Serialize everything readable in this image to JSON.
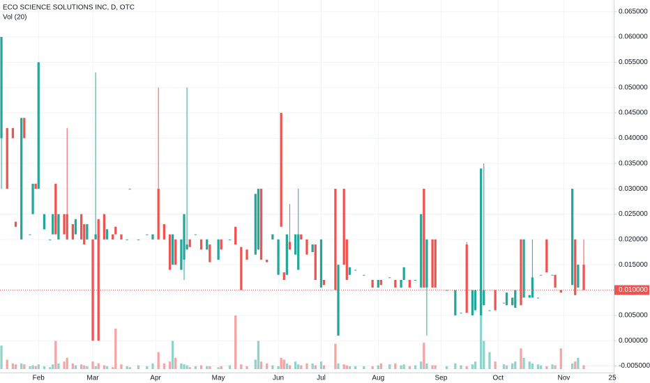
{
  "chart_data": {
    "type": "candlestick",
    "title": "ECO SCIENCE SOLUTIONS INC, D, OTC",
    "subtitle": "Vol (20)",
    "up_color": "#26a69a",
    "down_color": "#ef5350",
    "volume_up_color": "#8fd3cc",
    "volume_down_color": "#f5a5a3",
    "grid": true,
    "xlim": [
      -0.5,
      214.5
    ],
    "ylim": [
      -0.0063,
      0.0673
    ],
    "volume_lim": [
      0,
      100
    ],
    "xticks": [
      {
        "value": 13,
        "label": "Feb"
      },
      {
        "value": 32,
        "label": "Mar"
      },
      {
        "value": 54,
        "label": "Apr"
      },
      {
        "value": 76,
        "label": "May"
      },
      {
        "value": 97,
        "label": "Jun"
      },
      {
        "value": 112,
        "label": "Jul"
      },
      {
        "value": 132,
        "label": "Aug"
      },
      {
        "value": 154,
        "label": "Sep"
      },
      {
        "value": 174,
        "label": "Oct"
      },
      {
        "value": 197,
        "label": "Nov"
      },
      {
        "value": 214,
        "label": "25"
      }
    ],
    "yticks": [
      {
        "value": 0.065,
        "label": "0.065000"
      },
      {
        "value": 0.06,
        "label": "0.060000"
      },
      {
        "value": 0.055,
        "label": "0.055000"
      },
      {
        "value": 0.05,
        "label": "0.050000"
      },
      {
        "value": 0.045,
        "label": "0.045000"
      },
      {
        "value": 0.04,
        "label": "0.040000"
      },
      {
        "value": 0.035,
        "label": "0.035000"
      },
      {
        "value": 0.03,
        "label": "0.030000"
      },
      {
        "value": 0.025,
        "label": "0.025000"
      },
      {
        "value": 0.02,
        "label": "0.020000"
      },
      {
        "value": 0.015,
        "label": "0.015000"
      },
      {
        "value": 0.005,
        "label": "0.005000"
      },
      {
        "value": 0,
        "label": "0.000000"
      },
      {
        "value": -0.005,
        "label": "-0.005000"
      }
    ],
    "last_price": {
      "value": 0.01,
      "label": "0.010000"
    },
    "x": [
      0,
      2,
      4,
      5,
      7,
      8,
      10,
      11,
      12,
      13,
      15,
      17,
      18,
      19,
      20,
      22,
      23,
      25,
      26,
      28,
      29,
      30,
      32,
      33,
      34,
      36,
      37,
      39,
      40,
      42,
      44,
      45,
      48,
      51,
      53,
      55,
      57,
      59,
      60,
      61,
      63,
      64,
      65,
      66,
      68,
      70,
      72,
      73,
      76,
      77,
      80,
      82,
      84,
      86,
      89,
      90,
      91,
      93,
      95,
      97,
      98,
      99,
      100,
      101,
      103,
      104,
      105,
      107,
      109,
      110,
      112,
      113,
      117,
      118,
      120,
      121,
      122,
      124,
      127,
      130,
      132,
      133,
      136,
      138,
      140,
      141,
      143,
      145,
      147,
      148,
      149,
      151,
      152,
      156,
      159,
      161,
      163,
      165,
      166,
      168,
      169,
      171,
      173,
      176,
      177,
      179,
      180,
      182,
      183,
      185,
      186,
      188,
      189,
      191,
      193,
      194,
      196,
      200,
      201,
      202,
      204
    ],
    "open": [
      0.04,
      0.042,
      0.042,
      0.0235,
      0.02,
      0.044,
      0.021,
      0.025,
      0.031,
      0.03,
      0.022,
      0.02,
      0.021,
      0.031,
      0.02,
      0.025,
      0.025,
      0.023,
      0.021,
      0.025,
      0.023,
      0.02,
      0.02,
      0.02,
      0.024,
      0.025,
      0.02,
      0.021,
      0.0225,
      0.021,
      0.02,
      0.03,
      0.02,
      0.021,
      0.02,
      0.03,
      0.023,
      0.021,
      0.015,
      0.02,
      0.014,
      0.016,
      0.018,
      0.02,
      0.021,
      0.02,
      0.018,
      0.019,
      0.016,
      0.02,
      0.02,
      0.0225,
      0.0185,
      0.018,
      0.017,
      0.018,
      0.03,
      0.016,
      0.02,
      0.013,
      0.045,
      0.0135,
      0.013,
      0.0195,
      0.017,
      0.014,
      0.021,
      0.02,
      0.0175,
      0.019,
      0.0105,
      0.012,
      0.03,
      0.001,
      0.03,
      0.02,
      0.013,
      0.014,
      0.013,
      0.012,
      0.0105,
      0.012,
      0.0125,
      0.012,
      0.0105,
      0.012,
      0.012,
      0.012,
      0.0105,
      0.03,
      0.0105,
      0.02,
      0.02,
      0.01,
      0.005,
      0.0055,
      0.019,
      0.005,
      0.006,
      0.005,
      0.007,
      0.006,
      0.01,
      0.0075,
      0.007,
      0.007,
      0.0065,
      0.02,
      0.0085,
      0.0085,
      0.0085,
      0.0085,
      0.013,
      0.02,
      0.013,
      0.013,
      0.01,
      0.011,
      0.02,
      0.0105,
      0.015
    ],
    "high": [
      0.06,
      0.042,
      0.042,
      0.0235,
      0.044,
      0.044,
      0.021,
      0.031,
      0.031,
      0.055,
      0.025,
      0.02,
      0.025,
      0.031,
      0.025,
      0.025,
      0.042,
      0.023,
      0.024,
      0.025,
      0.023,
      0.023,
      0.02,
      0.053,
      0.024,
      0.025,
      0.022,
      0.021,
      0.0225,
      0.021,
      0.02,
      0.03,
      0.02,
      0.021,
      0.021,
      0.05,
      0.023,
      0.021,
      0.021,
      0.02,
      0.02,
      0.025,
      0.05,
      0.02,
      0.021,
      0.02,
      0.02,
      0.019,
      0.02,
      0.02,
      0.02,
      0.0225,
      0.0185,
      0.018,
      0.029,
      0.03,
      0.03,
      0.016,
      0.021,
      0.02,
      0.045,
      0.0135,
      0.021,
      0.027,
      0.021,
      0.03,
      0.021,
      0.02,
      0.019,
      0.019,
      0.02,
      0.012,
      0.03,
      0.015,
      0.03,
      0.02,
      0.0145,
      0.014,
      0.013,
      0.012,
      0.012,
      0.012,
      0.0125,
      0.012,
      0.012,
      0.0145,
      0.012,
      0.012,
      0.025,
      0.03,
      0.02,
      0.02,
      0.02,
      0.01,
      0.01,
      0.0055,
      0.0195,
      0.01,
      0.01,
      0.034,
      0.035,
      0.006,
      0.01,
      0.0075,
      0.0095,
      0.0085,
      0.01,
      0.02,
      0.02,
      0.009,
      0.02,
      0.0085,
      0.013,
      0.02,
      0.013,
      0.013,
      0.01,
      0.03,
      0.02,
      0.015,
      0.02
    ],
    "low": [
      0.03,
      0.03,
      0.04,
      0.0225,
      0.02,
      0.04,
      0.021,
      0.025,
      0.03,
      0.03,
      0.022,
      0.02,
      0.021,
      0.021,
      0.02,
      0.021,
      0.02,
      0.02,
      0.021,
      0.02,
      0.019,
      0.02,
      0,
      0.02,
      0,
      0.02,
      0.02,
      0.02,
      0.021,
      0.02,
      0.02,
      0.03,
      0.02,
      0.021,
      0.02,
      0.02,
      0.02,
      0.014,
      0.015,
      0.015,
      0.014,
      0.012,
      0.018,
      0.0185,
      0.021,
      0.018,
      0.018,
      0.0155,
      0.016,
      0.018,
      0.02,
      0.019,
      0.01,
      0.016,
      0.017,
      0.018,
      0.016,
      0.0155,
      0.02,
      0.013,
      0.0225,
      0.012,
      0.013,
      0.018,
      0.017,
      0.014,
      0.02,
      0.017,
      0.0175,
      0.012,
      0.0105,
      0.011,
      0.01,
      0.001,
      0.015,
      0.012,
      0.013,
      0.014,
      0.013,
      0.0105,
      0.0105,
      0.011,
      0.0125,
      0.0105,
      0.0105,
      0.012,
      0.0105,
      0.012,
      0.0105,
      0.0105,
      0.001,
      0.0105,
      0.0105,
      0.01,
      0.005,
      0.0055,
      0.0055,
      0.005,
      0.006,
      0.005,
      0.007,
      0.006,
      0.006,
      0.0075,
      0.007,
      0.007,
      0.0065,
      0.007,
      0.0085,
      0.0085,
      0.0085,
      0.0085,
      0.013,
      0.0135,
      0.013,
      0.0105,
      0.0095,
      0.011,
      0.009,
      0.0105,
      0.01
    ],
    "close": [
      0.06,
      0.03,
      0.04,
      0.0225,
      0.044,
      0.04,
      0.021,
      0.031,
      0.03,
      0.055,
      0.025,
      0.02,
      0.025,
      0.021,
      0.025,
      0.021,
      0.02,
      0.02,
      0.024,
      0.02,
      0.019,
      0.023,
      0,
      0.021,
      0,
      0.02,
      0.022,
      0.02,
      0.021,
      0.02,
      0.02,
      0.03,
      0.02,
      0.021,
      0.021,
      0.02,
      0.02,
      0.014,
      0.021,
      0.015,
      0.02,
      0.025,
      0.019,
      0.0185,
      0.021,
      0.018,
      0.02,
      0.0155,
      0.02,
      0.018,
      0.02,
      0.019,
      0.01,
      0.016,
      0.029,
      0.03,
      0.016,
      0.0155,
      0.021,
      0.02,
      0.0225,
      0.012,
      0.021,
      0.018,
      0.021,
      0.021,
      0.02,
      0.017,
      0.019,
      0.012,
      0.02,
      0.011,
      0.01,
      0.015,
      0.015,
      0.012,
      0.0145,
      0.014,
      0.013,
      0.0105,
      0.012,
      0.011,
      0.0125,
      0.0105,
      0.012,
      0.0145,
      0.0105,
      0.012,
      0.025,
      0.0105,
      0.02,
      0.0105,
      0.0105,
      0.01,
      0.01,
      0.0055,
      0.0055,
      0.01,
      0.01,
      0.034,
      0.01,
      0.006,
      0.006,
      0.0075,
      0.0095,
      0.0085,
      0.01,
      0.007,
      0.02,
      0.009,
      0.0125,
      0.0085,
      0.013,
      0.0135,
      0.013,
      0.0105,
      0.0095,
      0.03,
      0.009,
      0.015,
      0.01
    ],
    "volume": [
      25,
      10,
      6,
      5,
      6,
      5,
      3,
      4,
      3,
      5,
      3,
      2,
      5,
      30,
      6,
      8,
      12,
      6,
      4,
      5,
      4,
      3,
      8,
      3,
      6,
      4,
      3,
      2,
      43,
      5,
      3,
      2,
      4,
      3,
      6,
      18,
      6,
      8,
      30,
      12,
      6,
      5,
      4,
      2,
      3,
      4,
      3,
      3,
      2,
      3,
      4,
      57,
      5,
      3,
      10,
      30,
      8,
      6,
      4,
      3,
      12,
      10,
      6,
      4,
      8,
      5,
      4,
      6,
      6,
      4,
      8,
      4,
      27,
      6,
      5,
      4,
      3,
      3,
      3,
      3,
      4,
      6,
      5,
      6,
      4,
      5,
      3,
      4,
      8,
      28,
      6,
      4,
      4,
      3,
      6,
      4,
      3,
      5,
      8,
      96,
      30,
      18,
      8,
      5,
      4,
      6,
      8,
      22,
      12,
      8,
      6,
      5,
      4,
      3,
      5,
      4,
      22,
      6,
      8,
      12,
      4
    ]
  }
}
